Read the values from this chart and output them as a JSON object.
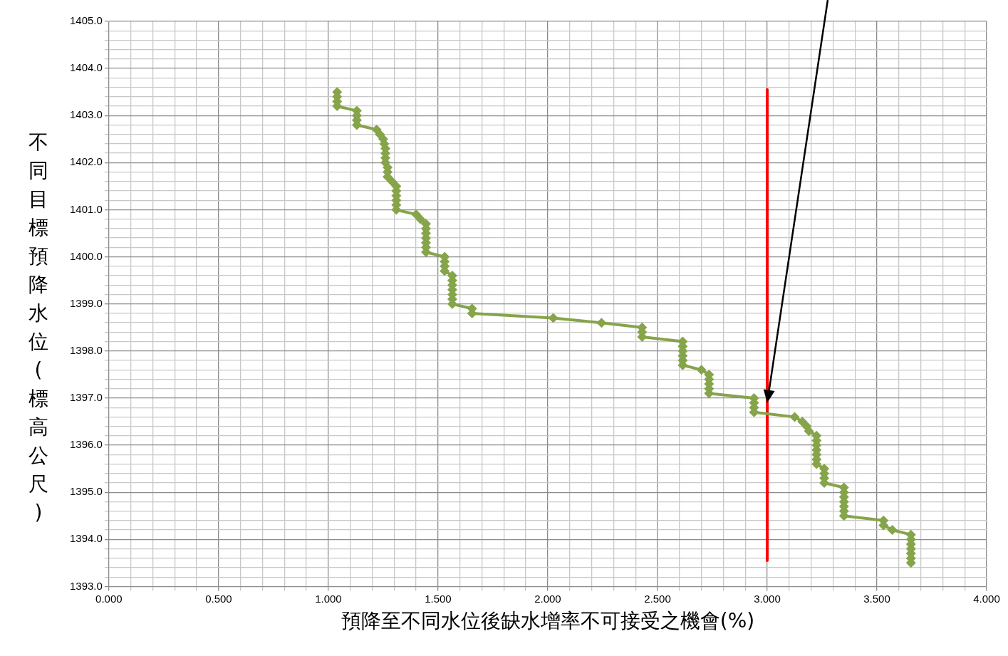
{
  "chart_data": {
    "type": "line",
    "xlabel": "預降至不同水位後缺水增率不可接受之機會(%)",
    "ylabel": "不同目標預降水位(標高公尺)",
    "xlim": [
      0,
      4
    ],
    "ylim": [
      1393,
      1405
    ],
    "xticks": [
      {
        "value": 0,
        "label": "0.000"
      },
      {
        "value": 0.1,
        "label": null
      },
      {
        "value": 0.2,
        "label": null
      },
      {
        "value": 0.3,
        "label": null
      },
      {
        "value": 0.4,
        "label": null
      },
      {
        "value": 0.5,
        "label": "0.500"
      },
      {
        "value": 0.6,
        "label": null
      },
      {
        "value": 0.7,
        "label": null
      },
      {
        "value": 0.8,
        "label": null
      },
      {
        "value": 0.9,
        "label": null
      },
      {
        "value": 1,
        "label": "1.000"
      },
      {
        "value": 1.1,
        "label": null
      },
      {
        "value": 1.2,
        "label": null
      },
      {
        "value": 1.3,
        "label": null
      },
      {
        "value": 1.4,
        "label": null
      },
      {
        "value": 1.5,
        "label": "1.500"
      },
      {
        "value": 1.6,
        "label": null
      },
      {
        "value": 1.7,
        "label": null
      },
      {
        "value": 1.8,
        "label": null
      },
      {
        "value": 1.9,
        "label": null
      },
      {
        "value": 2,
        "label": "2.000"
      },
      {
        "value": 2.1,
        "label": null
      },
      {
        "value": 2.2,
        "label": null
      },
      {
        "value": 2.3,
        "label": null
      },
      {
        "value": 2.4,
        "label": null
      },
      {
        "value": 2.5,
        "label": "2.500"
      },
      {
        "value": 2.6,
        "label": null
      },
      {
        "value": 2.7,
        "label": null
      },
      {
        "value": 2.8,
        "label": null
      },
      {
        "value": 2.9,
        "label": null
      },
      {
        "value": 3,
        "label": "3.000"
      },
      {
        "value": 3.1,
        "label": null
      },
      {
        "value": 3.2,
        "label": null
      },
      {
        "value": 3.3,
        "label": null
      },
      {
        "value": 3.4,
        "label": null
      },
      {
        "value": 3.5,
        "label": "3.500"
      },
      {
        "value": 3.6,
        "label": null
      },
      {
        "value": 3.7,
        "label": null
      },
      {
        "value": 3.8,
        "label": null
      },
      {
        "value": 3.9,
        "label": null
      },
      {
        "value": 4,
        "label": "4.000"
      }
    ],
    "yticks": [
      {
        "value": 1393,
        "label": "1393.0"
      },
      {
        "value": 1393.2,
        "label": null
      },
      {
        "value": 1393.4,
        "label": null
      },
      {
        "value": 1393.6,
        "label": null
      },
      {
        "value": 1393.8,
        "label": null
      },
      {
        "value": 1394,
        "label": "1394.0"
      },
      {
        "value": 1394.2,
        "label": null
      },
      {
        "value": 1394.4,
        "label": null
      },
      {
        "value": 1394.6,
        "label": null
      },
      {
        "value": 1394.8,
        "label": null
      },
      {
        "value": 1395,
        "label": "1395.0"
      },
      {
        "value": 1395.2,
        "label": null
      },
      {
        "value": 1395.4,
        "label": null
      },
      {
        "value": 1395.6,
        "label": null
      },
      {
        "value": 1395.8,
        "label": null
      },
      {
        "value": 1396,
        "label": "1396.0"
      },
      {
        "value": 1396.2,
        "label": null
      },
      {
        "value": 1396.4,
        "label": null
      },
      {
        "value": 1396.6,
        "label": null
      },
      {
        "value": 1396.8,
        "label": null
      },
      {
        "value": 1397,
        "label": "1397.0"
      },
      {
        "value": 1397.2,
        "label": null
      },
      {
        "value": 1397.4,
        "label": null
      },
      {
        "value": 1397.6,
        "label": null
      },
      {
        "value": 1397.8,
        "label": null
      },
      {
        "value": 1398,
        "label": "1398.0"
      },
      {
        "value": 1398.2,
        "label": null
      },
      {
        "value": 1398.4,
        "label": null
      },
      {
        "value": 1398.6,
        "label": null
      },
      {
        "value": 1398.8,
        "label": null
      },
      {
        "value": 1399,
        "label": "1399.0"
      },
      {
        "value": 1399.2,
        "label": null
      },
      {
        "value": 1399.4,
        "label": null
      },
      {
        "value": 1399.6,
        "label": null
      },
      {
        "value": 1399.8,
        "label": null
      },
      {
        "value": 1400,
        "label": "1400.0"
      },
      {
        "value": 1400.2,
        "label": null
      },
      {
        "value": 1400.4,
        "label": null
      },
      {
        "value": 1400.6,
        "label": null
      },
      {
        "value": 1400.8,
        "label": null
      },
      {
        "value": 1401,
        "label": "1401.0"
      },
      {
        "value": 1401.2,
        "label": null
      },
      {
        "value": 1401.4,
        "label": null
      },
      {
        "value": 1401.6,
        "label": null
      },
      {
        "value": 1401.8,
        "label": null
      },
      {
        "value": 1402,
        "label": "1402.0"
      },
      {
        "value": 1402.2,
        "label": null
      },
      {
        "value": 1402.4,
        "label": null
      },
      {
        "value": 1402.6,
        "label": null
      },
      {
        "value": 1402.8,
        "label": null
      },
      {
        "value": 1403,
        "label": "1403.0"
      },
      {
        "value": 1403.2,
        "label": null
      },
      {
        "value": 1403.4,
        "label": null
      },
      {
        "value": 1403.6,
        "label": null
      },
      {
        "value": 1403.8,
        "label": null
      },
      {
        "value": 1404,
        "label": "1404.0"
      },
      {
        "value": 1404.2,
        "label": null
      },
      {
        "value": 1404.4,
        "label": null
      },
      {
        "value": 1404.6,
        "label": null
      },
      {
        "value": 1404.8,
        "label": null
      },
      {
        "value": 1405,
        "label": "1405.0"
      }
    ],
    "grid": true,
    "marker": "diamond",
    "line_style": "solid",
    "series": [
      {
        "color": "#86a44a",
        "x": [
          1.04,
          1.04,
          1.04,
          1.04,
          1.13,
          1.13,
          1.13,
          1.13,
          1.22,
          1.235,
          1.25,
          1.255,
          1.26,
          1.26,
          1.26,
          1.26,
          1.27,
          1.27,
          1.27,
          1.29,
          1.31,
          1.31,
          1.31,
          1.31,
          1.31,
          1.31,
          1.4,
          1.42,
          1.445,
          1.445,
          1.445,
          1.445,
          1.445,
          1.445,
          1.445,
          1.53,
          1.53,
          1.53,
          1.53,
          1.565,
          1.565,
          1.565,
          1.565,
          1.565,
          1.565,
          1.565,
          1.655,
          1.655,
          2.025,
          2.245,
          2.43,
          2.43,
          2.43,
          2.615,
          2.615,
          2.615,
          2.615,
          2.615,
          2.615,
          2.7,
          2.735,
          2.735,
          2.735,
          2.735,
          2.735,
          2.94,
          2.94,
          2.94,
          2.94,
          3.125,
          3.16,
          3.18,
          3.19,
          3.225,
          3.225,
          3.225,
          3.225,
          3.225,
          3.225,
          3.225,
          3.26,
          3.26,
          3.26,
          3.26,
          3.35,
          3.35,
          3.35,
          3.35,
          3.35,
          3.35,
          3.35,
          3.53,
          3.53,
          3.57,
          3.655,
          3.655,
          3.655,
          3.655,
          3.655,
          3.655,
          3.655
        ],
        "values": [
          1403.5,
          1403.4,
          1403.3,
          1403.2,
          1403.1,
          1403.0,
          1402.9,
          1402.8,
          1402.7,
          1402.6,
          1402.5,
          1402.4,
          1402.3,
          1402.2,
          1402.1,
          1402.0,
          1401.9,
          1401.8,
          1401.7,
          1401.6,
          1401.5,
          1401.4,
          1401.3,
          1401.2,
          1401.1,
          1401.0,
          1400.9,
          1400.8,
          1400.7,
          1400.6,
          1400.5,
          1400.4,
          1400.3,
          1400.2,
          1400.1,
          1400.0,
          1399.9,
          1399.8,
          1399.7,
          1399.6,
          1399.5,
          1399.4,
          1399.3,
          1399.2,
          1399.1,
          1399.0,
          1398.9,
          1398.8,
          1398.7,
          1398.6,
          1398.5,
          1398.4,
          1398.3,
          1398.2,
          1398.1,
          1398.0,
          1397.9,
          1397.8,
          1397.7,
          1397.6,
          1397.5,
          1397.4,
          1397.3,
          1397.2,
          1397.1,
          1397.0,
          1396.9,
          1396.8,
          1396.7,
          1396.6,
          1396.5,
          1396.4,
          1396.3,
          1396.2,
          1396.1,
          1396.0,
          1395.9,
          1395.8,
          1395.7,
          1395.6,
          1395.5,
          1395.4,
          1395.3,
          1395.2,
          1395.1,
          1395.0,
          1394.9,
          1394.8,
          1394.7,
          1394.6,
          1394.5,
          1394.4,
          1394.3,
          1394.2,
          1394.1,
          1394.0,
          1393.9,
          1393.8,
          1393.7,
          1393.6,
          1393.5
        ]
      },
      {
        "color": "#ff0000",
        "marker": "none",
        "x": [
          3.0,
          3.0
        ],
        "values": [
          1403.55,
          1393.55
        ]
      }
    ]
  }
}
